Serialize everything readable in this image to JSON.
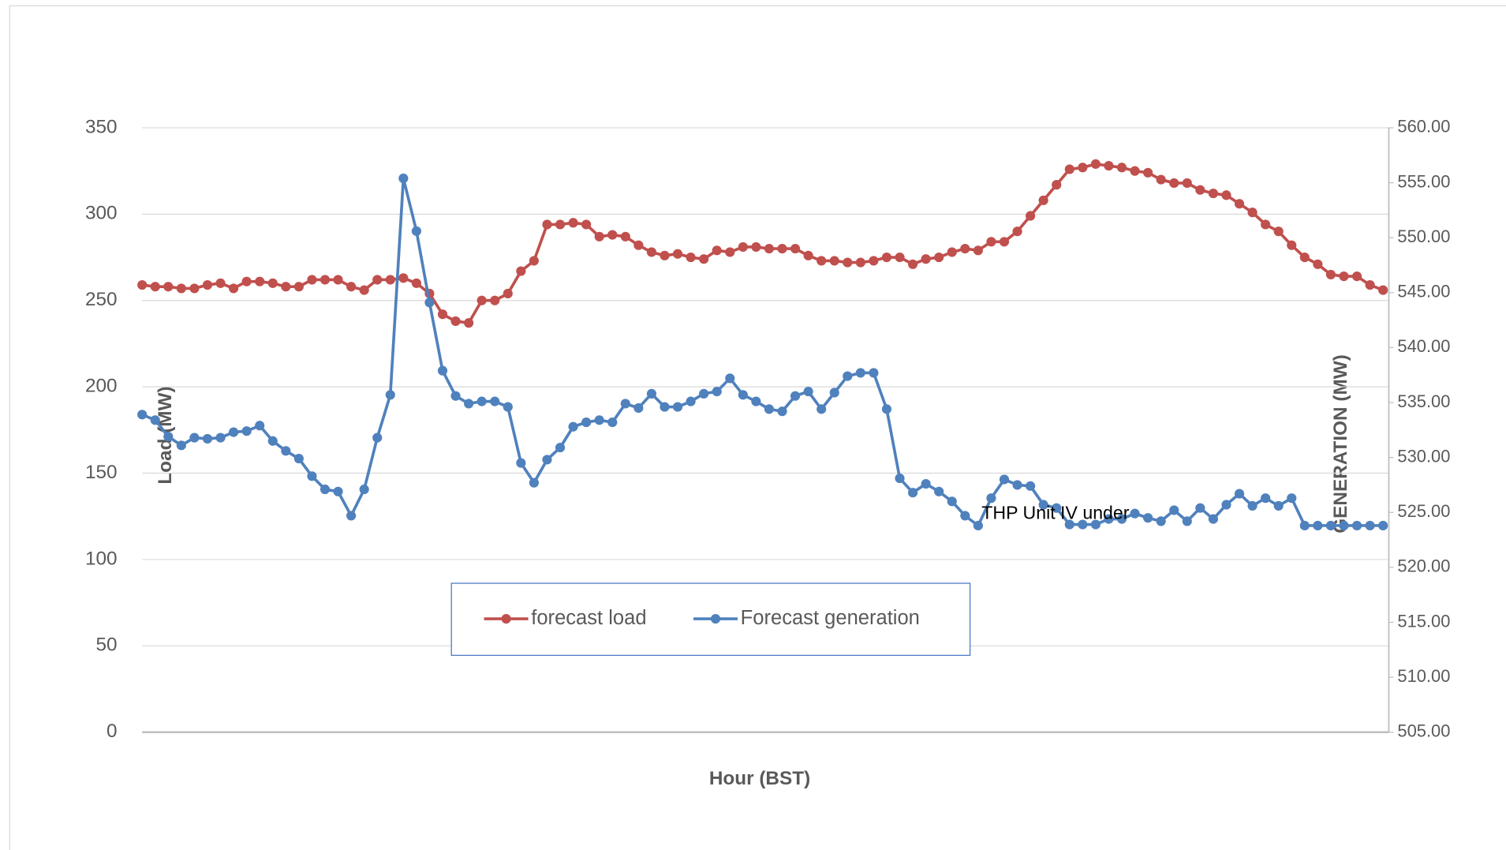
{
  "chart_data": {
    "type": "line",
    "xlabel": "Hour (BST)",
    "ylabel": "Load (MW)",
    "y2label": "GENERATION (MW)",
    "annotation": "THP Unit IV under",
    "ylim": [
      0,
      350
    ],
    "yticks": [
      0,
      50,
      100,
      150,
      200,
      250,
      300,
      350
    ],
    "y2lim": [
      505,
      560
    ],
    "y2ticks": [
      {
        "value": 505,
        "label": "505.00"
      },
      {
        "value": 510,
        "label": "510.00"
      },
      {
        "value": 515,
        "label": "515.00"
      },
      {
        "value": 520,
        "label": "520.00"
      },
      {
        "value": 525,
        "label": "525.00"
      },
      {
        "value": 530,
        "label": "530.00"
      },
      {
        "value": 535,
        "label": "535.00"
      },
      {
        "value": 540,
        "label": "540.00"
      },
      {
        "value": 545,
        "label": "545.00"
      },
      {
        "value": 550,
        "label": "550.00"
      },
      {
        "value": 555,
        "label": "555.00"
      },
      {
        "value": 560,
        "label": "560.00"
      }
    ],
    "grid": true,
    "legend": "bottom",
    "series": [
      {
        "name": "forecast load",
        "color": "#c0504d",
        "values": [
          259,
          258,
          258,
          257,
          257,
          259,
          260,
          257,
          261,
          261,
          260,
          258,
          258,
          262,
          262,
          262,
          258,
          256,
          262,
          262,
          263,
          260,
          254,
          242,
          238,
          237,
          250,
          250,
          254,
          267,
          273,
          294,
          294,
          295,
          294,
          287,
          288,
          287,
          282,
          278,
          276,
          277,
          275,
          274,
          279,
          278,
          281,
          281,
          280,
          280,
          280,
          276,
          273,
          273,
          272,
          272,
          273,
          275,
          275,
          271,
          274,
          275,
          278,
          280,
          279,
          284,
          284,
          290,
          299,
          308,
          317,
          326,
          327,
          329,
          328,
          327,
          325,
          324,
          320,
          318,
          318,
          314,
          312,
          311,
          306,
          301,
          294,
          290,
          282,
          275,
          271,
          265,
          264,
          264,
          259,
          256
        ]
      },
      {
        "name": "Forecast generation",
        "color": "#4f81bd",
        "axis": "y2",
        "values": [
          533.9,
          533.4,
          531.9,
          531.1,
          531.8,
          531.7,
          531.8,
          532.3,
          532.4,
          532.9,
          531.5,
          530.6,
          529.9,
          528.3,
          527.1,
          526.9,
          524.7,
          527.1,
          531.8,
          535.7,
          555.4,
          550.6,
          544.1,
          537.9,
          535.6,
          534.9,
          535.1,
          535.1,
          534.6,
          529.5,
          527.7,
          529.8,
          530.9,
          532.8,
          533.2,
          533.4,
          533.2,
          534.9,
          534.5,
          535.8,
          534.6,
          534.6,
          535.1,
          535.8,
          536.0,
          537.2,
          535.7,
          535.1,
          534.4,
          534.2,
          535.6,
          536.0,
          534.4,
          535.9,
          537.4,
          537.7,
          537.7,
          534.4,
          528.1,
          526.8,
          527.6,
          526.9,
          526.0,
          524.7,
          523.8,
          526.3,
          528.0,
          527.5,
          527.4,
          525.7,
          525.4,
          523.9,
          523.9,
          523.9,
          524.4,
          524.4,
          524.9,
          524.5,
          524.2,
          525.2,
          524.2,
          525.4,
          524.4,
          525.7,
          526.7,
          525.6,
          526.3,
          525.6,
          526.3,
          523.8,
          523.8,
          523.8,
          523.8,
          523.8,
          523.8,
          523.8
        ]
      }
    ]
  }
}
